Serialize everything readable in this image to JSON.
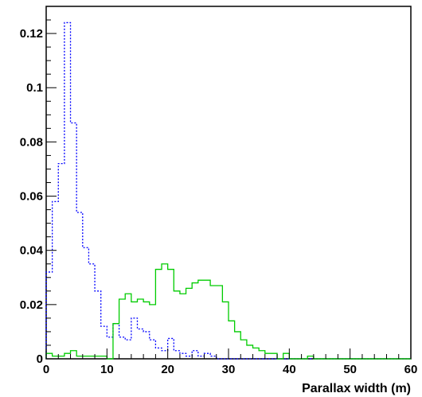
{
  "chart_data": {
    "type": "line",
    "step": true,
    "title": "",
    "xlabel": "Parallax width (m)",
    "ylabel": "",
    "xlim": [
      0,
      60
    ],
    "ylim": [
      0,
      0.13
    ],
    "bin_width": 1,
    "x_ticks": [
      0,
      10,
      20,
      30,
      40,
      50,
      60
    ],
    "x_tick_labels": [
      "0",
      "10",
      "20",
      "30",
      "40",
      "50",
      "60"
    ],
    "y_ticks": [
      0,
      0.02,
      0.04,
      0.06,
      0.08,
      0.1,
      0.12
    ],
    "y_tick_labels": [
      "0",
      "0.02",
      "0.04",
      "0.06",
      "0.08",
      "0.1",
      "0.12"
    ],
    "grid": false,
    "legend": "none",
    "series": [
      {
        "color": "#0000ff",
        "line_style": "dotted",
        "bin_edges_start": 0,
        "values": [
          0.032,
          0.058,
          0.072,
          0.124,
          0.087,
          0.054,
          0.041,
          0.035,
          0.025,
          0.012,
          0.008,
          0.013,
          0.008,
          0.007,
          0.015,
          0.011,
          0.01,
          0.007,
          0.004,
          0.003,
          0.0075,
          0.003,
          0.002,
          0.001,
          0.003,
          0.001,
          0.002,
          0.001,
          0.0,
          0.0,
          0.0,
          0.0,
          0.0,
          0.0,
          0.0,
          0.0,
          0.0,
          0.0,
          0.0,
          0.0,
          0.0,
          0.0,
          0.0,
          0.0,
          0.0,
          0.0,
          0.0,
          0.0,
          0.0,
          0.0,
          0.0,
          0.0,
          0.0,
          0.0,
          0.0,
          0.0,
          0.0,
          0.0,
          0.0,
          0.0
        ]
      },
      {
        "color": "#00cc00",
        "line_style": "solid",
        "bin_edges_start": 0,
        "values": [
          0.002,
          0.001,
          0.001,
          0.002,
          0.003,
          0.001,
          0.001,
          0.001,
          0.001,
          0.001,
          0.0,
          0.013,
          0.022,
          0.024,
          0.021,
          0.022,
          0.021,
          0.02,
          0.033,
          0.035,
          0.033,
          0.025,
          0.024,
          0.026,
          0.028,
          0.029,
          0.029,
          0.027,
          0.027,
          0.021,
          0.014,
          0.01,
          0.007,
          0.005,
          0.004,
          0.003,
          0.002,
          0.002,
          0.0,
          0.002,
          0.0,
          0.0,
          0.0,
          0.001,
          0.0,
          0.0,
          0.0,
          0.0,
          0.0,
          0.0,
          0.0,
          0.0,
          0.0,
          0.0,
          0.0,
          0.0,
          0.0,
          0.0,
          0.0,
          0.0
        ]
      }
    ]
  }
}
